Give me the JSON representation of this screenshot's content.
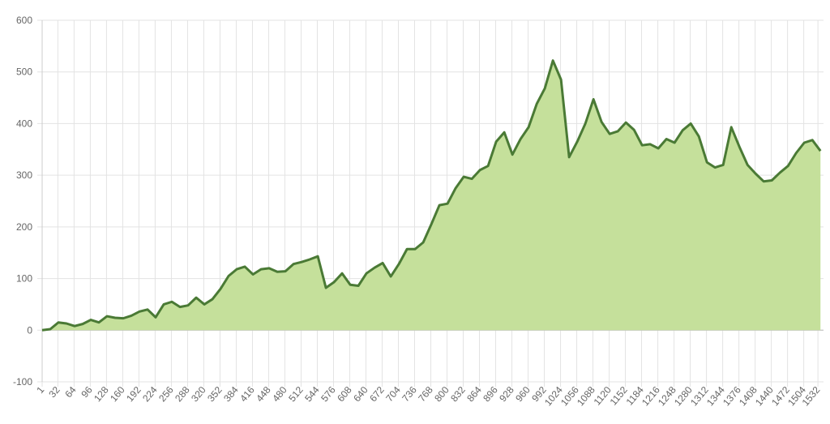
{
  "chart_data": {
    "type": "area",
    "x": [
      1,
      17,
      33,
      49,
      65,
      81,
      97,
      113,
      129,
      145,
      161,
      177,
      193,
      209,
      225,
      241,
      257,
      273,
      289,
      305,
      321,
      337,
      353,
      369,
      385,
      401,
      417,
      433,
      449,
      465,
      481,
      497,
      513,
      529,
      545,
      561,
      577,
      593,
      609,
      625,
      641,
      657,
      673,
      689,
      705,
      721,
      737,
      753,
      769,
      785,
      801,
      817,
      833,
      849,
      865,
      881,
      897,
      913,
      929,
      945,
      961,
      977,
      993,
      1009,
      1025,
      1041,
      1057,
      1073,
      1089,
      1105,
      1121,
      1137,
      1153,
      1169,
      1185,
      1201,
      1217,
      1233,
      1249,
      1265,
      1281,
      1297,
      1313,
      1329,
      1345,
      1361,
      1377,
      1393,
      1409,
      1425,
      1441,
      1457,
      1473,
      1489,
      1505,
      1521,
      1537
    ],
    "series": [
      {
        "color": "#4a7a35",
        "fill": "#c5e09b",
        "values": [
          0,
          2,
          15,
          13,
          8,
          12,
          20,
          15,
          27,
          24,
          23,
          28,
          36,
          40,
          25,
          50,
          55,
          45,
          48,
          63,
          50,
          60,
          80,
          105,
          118,
          123,
          108,
          118,
          120,
          113,
          114,
          128,
          132,
          137,
          143,
          82,
          93,
          110,
          88,
          86,
          110,
          121,
          130,
          104,
          128,
          157,
          157,
          170,
          205,
          242,
          245,
          275,
          297,
          293,
          310,
          318,
          365,
          383,
          340,
          370,
          393,
          438,
          468,
          522,
          485,
          335,
          365,
          400,
          447,
          403,
          380,
          385,
          402,
          388,
          358,
          360,
          352,
          370,
          363,
          387,
          400,
          375,
          325,
          315,
          320,
          393,
          355,
          320,
          303,
          288,
          290,
          305,
          318,
          343,
          363,
          368,
          347
        ]
      }
    ],
    "xlim": [
      1,
      1543
    ],
    "xticks": [
      1,
      32,
      64,
      96,
      128,
      160,
      192,
      224,
      256,
      288,
      320,
      352,
      384,
      416,
      448,
      480,
      512,
      544,
      576,
      608,
      640,
      672,
      704,
      736,
      768,
      800,
      832,
      864,
      896,
      928,
      960,
      992,
      1024,
      1056,
      1088,
      1120,
      1152,
      1184,
      1216,
      1248,
      1280,
      1312,
      1344,
      1376,
      1408,
      1440,
      1472,
      1504,
      1532
    ],
    "ylim": [
      -100,
      600
    ],
    "yticks": [
      -100,
      0,
      100,
      200,
      300,
      400,
      500,
      600
    ],
    "grid": true
  }
}
